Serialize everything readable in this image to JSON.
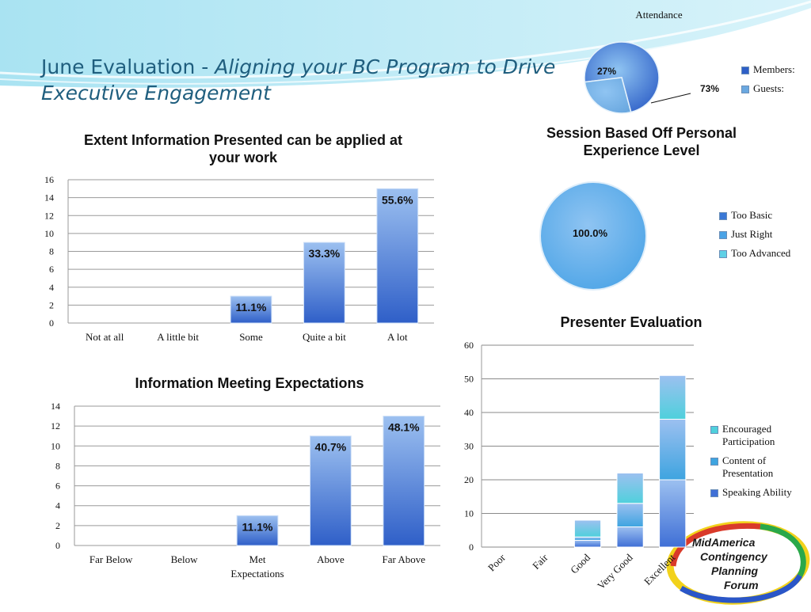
{
  "title": {
    "prefix": "June Evaluation - ",
    "italic": "Aligning your BC Program to Drive Executive Engagement"
  },
  "logo": {
    "line1": "MidAmerica",
    "line2": "Contingency",
    "line3": "Planning",
    "line4": "Forum"
  },
  "chart_data": [
    {
      "id": "attendance",
      "type": "pie",
      "title": "Attendance",
      "categories": [
        "Members:",
        "Guests:"
      ],
      "values": [
        73,
        27
      ],
      "data_labels": [
        "73%",
        "27%"
      ],
      "colors": [
        "#2e5fc7",
        "#6aa8e0"
      ],
      "legend": "right"
    },
    {
      "id": "extent",
      "type": "bar",
      "title": "Extent Information Presented can be applied at your work",
      "categories": [
        "Not at all",
        "A little bit",
        "Some",
        "Quite a bit",
        "A lot"
      ],
      "values": [
        0,
        0,
        3,
        9,
        15
      ],
      "data_labels": [
        "",
        "",
        "11.1%",
        "33.3%",
        "55.6%"
      ],
      "ylim": [
        0,
        16
      ],
      "yticks": [
        0,
        2,
        4,
        6,
        8,
        10,
        12,
        14,
        16
      ],
      "grid": true
    },
    {
      "id": "session",
      "type": "pie",
      "title": "Session Based Off Personal Experience Level",
      "categories": [
        "Too Basic",
        "Just Right",
        "Too Advanced"
      ],
      "values": [
        0,
        100,
        0
      ],
      "data_labels": [
        "",
        "100.0%",
        ""
      ],
      "colors": [
        "#3a78d6",
        "#4aa3e6",
        "#5fd0e6"
      ],
      "legend": "right"
    },
    {
      "id": "meeting",
      "type": "bar",
      "title": "Information Meeting Expectations",
      "categories": [
        "Far Below",
        "Below",
        "Met Expectations",
        "Above",
        "Far Above"
      ],
      "values": [
        0,
        0,
        3,
        11,
        13
      ],
      "data_labels": [
        "",
        "",
        "11.1%",
        "40.7%",
        "48.1%"
      ],
      "ylim": [
        0,
        14
      ],
      "yticks": [
        0,
        2,
        4,
        6,
        8,
        10,
        12,
        14
      ],
      "grid": true
    },
    {
      "id": "presenter",
      "type": "bar",
      "stacked": true,
      "title": "Presenter Evaluation",
      "categories": [
        "Poor",
        "Fair",
        "Good",
        "Very Good",
        "Excellent"
      ],
      "series": [
        {
          "name": "Speaking Ability",
          "values": [
            0,
            0,
            2,
            6,
            20
          ],
          "color": "#3f6fd6"
        },
        {
          "name": "Content of Presentation",
          "values": [
            0,
            0,
            1,
            7,
            18
          ],
          "color": "#3ea4e0"
        },
        {
          "name": "Encouraged Participation",
          "values": [
            0,
            0,
            5,
            9,
            13
          ],
          "color": "#4fd0dc"
        }
      ],
      "ylim": [
        0,
        60
      ],
      "yticks": [
        0,
        10,
        20,
        30,
        40,
        50,
        60
      ],
      "grid": true,
      "legend": "right"
    }
  ]
}
